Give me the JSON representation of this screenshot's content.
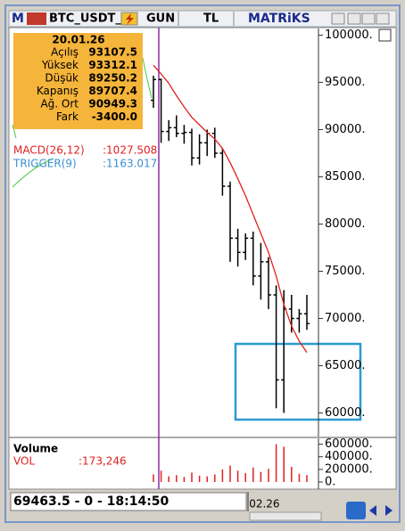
{
  "window": {
    "icon": "M",
    "symbol": "BTC_USDT_",
    "period": "GUN",
    "currency": "TL",
    "brand": "MATRiKS"
  },
  "info": {
    "date": "20.01.26",
    "rows": [
      {
        "label": "Açılış",
        "value": "93107.5"
      },
      {
        "label": "Yüksek",
        "value": "93312.1"
      },
      {
        "label": "Düşük",
        "value": "89250.2"
      },
      {
        "label": "Kapanış",
        "value": "89707.4"
      },
      {
        "label": "Ağ. Ort",
        "value": "90949.3"
      },
      {
        "label": "Fark",
        "value": "-3400.0"
      }
    ]
  },
  "indicators": [
    {
      "name": "MACD(26,12)",
      "value": ":1027.508",
      "color": "#e02020"
    },
    {
      "name": "TRIGGER(9)",
      "value": ":1163.017",
      "color": "#3a8fd0"
    }
  ],
  "status": {
    "text": "69463.5 - 0 - 18:14:50"
  },
  "chart_data": {
    "type": "ohlc",
    "categories": [
      null,
      null,
      null,
      null,
      null,
      null,
      null,
      null,
      null,
      null,
      null,
      null,
      "02.26",
      null,
      null,
      null,
      null,
      null,
      null,
      null,
      null
    ],
    "open": [
      93100,
      95300,
      89800,
      90200,
      89600,
      89700,
      87000,
      88600,
      89600,
      87500,
      84000,
      78500,
      77000,
      78500,
      74500,
      76000,
      72500,
      63500,
      71000,
      70000,
      70500
    ],
    "high": [
      95700,
      95400,
      91000,
      91500,
      90500,
      90100,
      89500,
      90000,
      90200,
      88000,
      84500,
      79500,
      79000,
      79200,
      78000,
      76500,
      73500,
      73000,
      72500,
      71000,
      72500
    ],
    "low": [
      92300,
      88600,
      88800,
      89200,
      88500,
      86200,
      86300,
      87200,
      87000,
      83000,
      76000,
      75500,
      76200,
      73500,
      72000,
      71000,
      60500,
      60000,
      68500,
      68500,
      68800
    ],
    "close": [
      95300,
      89800,
      90200,
      89600,
      89700,
      87000,
      88600,
      89600,
      87500,
      84000,
      78500,
      77000,
      78500,
      74500,
      76000,
      72500,
      63500,
      71000,
      70000,
      70500,
      69463.5
    ],
    "bar_color": "#000000",
    "ma": {
      "color": "#e02020",
      "values": [
        96800,
        95900,
        94900,
        93600,
        92400,
        91300,
        90500,
        89700,
        89000,
        88000,
        86500,
        84800,
        83000,
        81000,
        79000,
        77000,
        74500,
        71500,
        69200,
        67600,
        66400
      ]
    },
    "ylim": [
      57500,
      100700
    ],
    "yticks": [
      {
        "value": 100000,
        "label": "100000."
      },
      {
        "value": 95000,
        "label": "95000."
      },
      {
        "value": 90000,
        "label": "90000."
      },
      {
        "value": 85000,
        "label": "85000."
      },
      {
        "value": 80000,
        "label": "80000."
      },
      {
        "value": 75000,
        "label": "75000."
      },
      {
        "value": 70000,
        "label": "70000."
      },
      {
        "value": 65000,
        "label": "65000."
      },
      {
        "value": 60000,
        "label": "60000."
      }
    ],
    "volume": {
      "title": "Volume",
      "name": "VOL",
      "value_label": ":173,246",
      "color": "#e02020",
      "values": [
        120000,
        180000,
        90000,
        110000,
        80000,
        150000,
        100000,
        90000,
        120000,
        200000,
        260000,
        180000,
        140000,
        230000,
        160000,
        210000,
        600000,
        560000,
        240000,
        130000,
        110000
      ],
      "ylim": [
        0,
        650000
      ],
      "yticks": [
        {
          "value": 600000,
          "label": "600000."
        },
        {
          "value": 400000,
          "label": "400000."
        },
        {
          "value": 200000,
          "label": "200000."
        },
        {
          "value": 0,
          "label": "0."
        }
      ]
    }
  }
}
